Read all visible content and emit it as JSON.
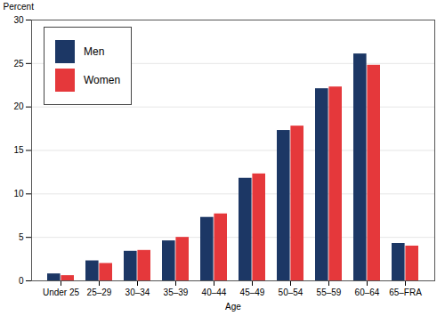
{
  "chart_data": {
    "type": "bar",
    "ylabel": "Percent",
    "xlabel": "Age",
    "categories": [
      "Under 25",
      "25–29",
      "30–34",
      "35–39",
      "40–44",
      "45–49",
      "50–54",
      "55–59",
      "60–64",
      "65–FRA"
    ],
    "series": [
      {
        "name": "Men",
        "color": "#1c3765",
        "values": [
          0.8,
          2.3,
          3.4,
          4.6,
          7.3,
          11.8,
          17.3,
          22.1,
          26.1,
          4.3
        ]
      },
      {
        "name": "Women",
        "color": "#e5383b",
        "values": [
          0.6,
          2.0,
          3.5,
          5.0,
          7.7,
          12.3,
          17.8,
          22.3,
          24.8,
          4.0
        ]
      }
    ],
    "ylim": [
      0,
      30
    ],
    "yticks": [
      0,
      5,
      10,
      15,
      20,
      25,
      30
    ],
    "grid": true,
    "legend": "upper left"
  }
}
